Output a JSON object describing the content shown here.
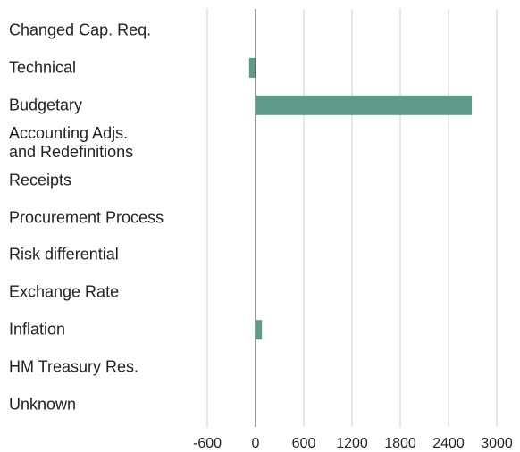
{
  "chart_data": {
    "type": "barh",
    "categories": [
      "Changed Cap. Req.",
      "Technical",
      "Budgetary",
      "Accounting Adjs.\nand Redefinitions",
      "Receipts",
      "Procurement Process",
      "Risk differential",
      "Exchange Rate",
      "Inflation",
      "HM Treasury Res.",
      "Unknown"
    ],
    "values": [
      0,
      -80,
      2690,
      0,
      0,
      0,
      0,
      0,
      80,
      0,
      0
    ],
    "color": "#5e9b8a",
    "xlim": [
      -600,
      3000
    ],
    "xticks": [
      -600,
      0,
      600,
      1200,
      1800,
      2400,
      3000
    ],
    "grid": true
  }
}
